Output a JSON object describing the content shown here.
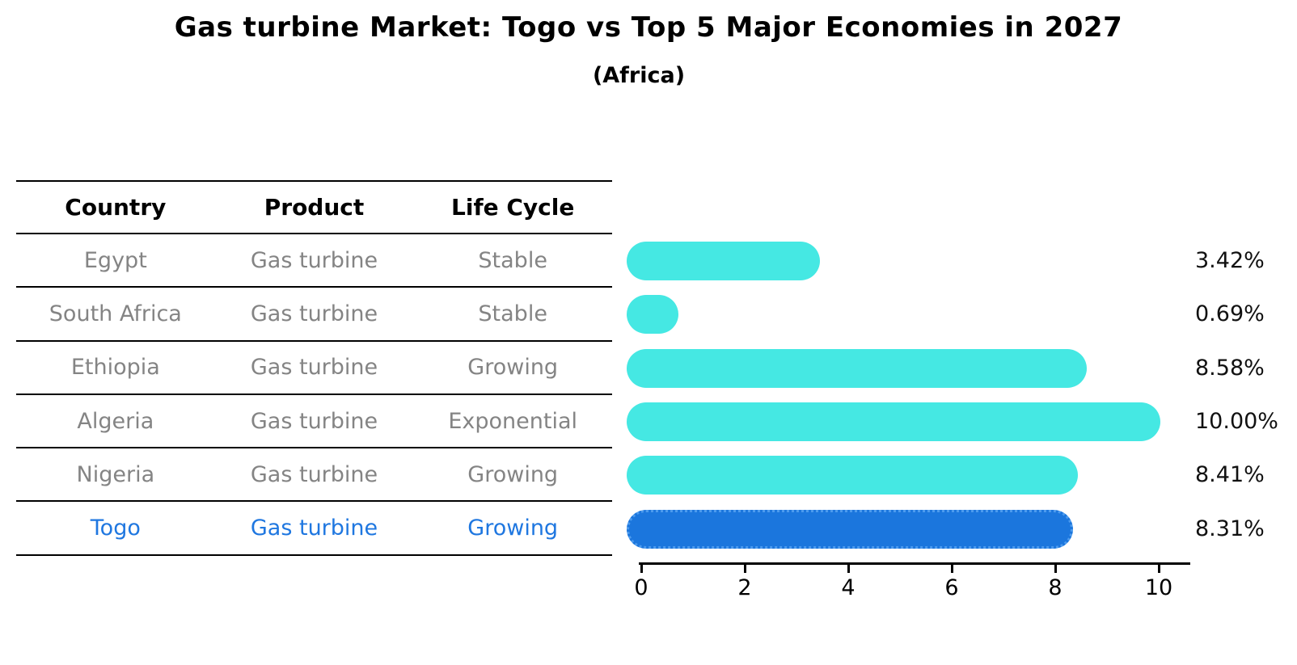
{
  "title": "Gas turbine Market: Togo vs Top 5 Major Economies in 2027",
  "subtitle": "(Africa)",
  "table": {
    "headers": [
      "Country",
      "Product",
      "Life Cycle"
    ],
    "rows": [
      {
        "country": "Egypt",
        "product": "Gas turbine",
        "life_cycle": "Stable",
        "highlight": false
      },
      {
        "country": "South Africa",
        "product": "Gas turbine",
        "life_cycle": "Stable",
        "highlight": false
      },
      {
        "country": "Ethiopia",
        "product": "Gas turbine",
        "life_cycle": "Growing",
        "highlight": false
      },
      {
        "country": "Algeria",
        "product": "Gas turbine",
        "life_cycle": "Exponential",
        "highlight": false
      },
      {
        "country": "Nigeria",
        "product": "Gas turbine",
        "life_cycle": "Growing",
        "highlight": false
      },
      {
        "country": "Togo",
        "product": "Gas turbine",
        "life_cycle": "Growing",
        "highlight": true
      }
    ]
  },
  "chart_data": {
    "type": "bar",
    "orientation": "horizontal",
    "title": "Gas turbine Market: Togo vs Top 5 Major Economies in 2027",
    "subtitle": "(Africa)",
    "categories": [
      "Egypt",
      "South Africa",
      "Ethiopia",
      "Algeria",
      "Nigeria",
      "Togo"
    ],
    "values": [
      3.42,
      0.69,
      8.58,
      10.0,
      8.41,
      8.31
    ],
    "value_labels": [
      "3.42%",
      "0.69%",
      "8.58%",
      "10.00%",
      "8.41%",
      "8.31%"
    ],
    "x_ticks": [
      "0",
      "2",
      "4",
      "6",
      "8",
      "10"
    ],
    "xlim": [
      0,
      10.6
    ],
    "grid": false,
    "legend": "none",
    "bar_color": "#45e8e3",
    "highlight_color": "#1b76dd",
    "highlight_index": 5,
    "highlight_text_color": "#1f77e0",
    "table_text_color": "#848484"
  }
}
